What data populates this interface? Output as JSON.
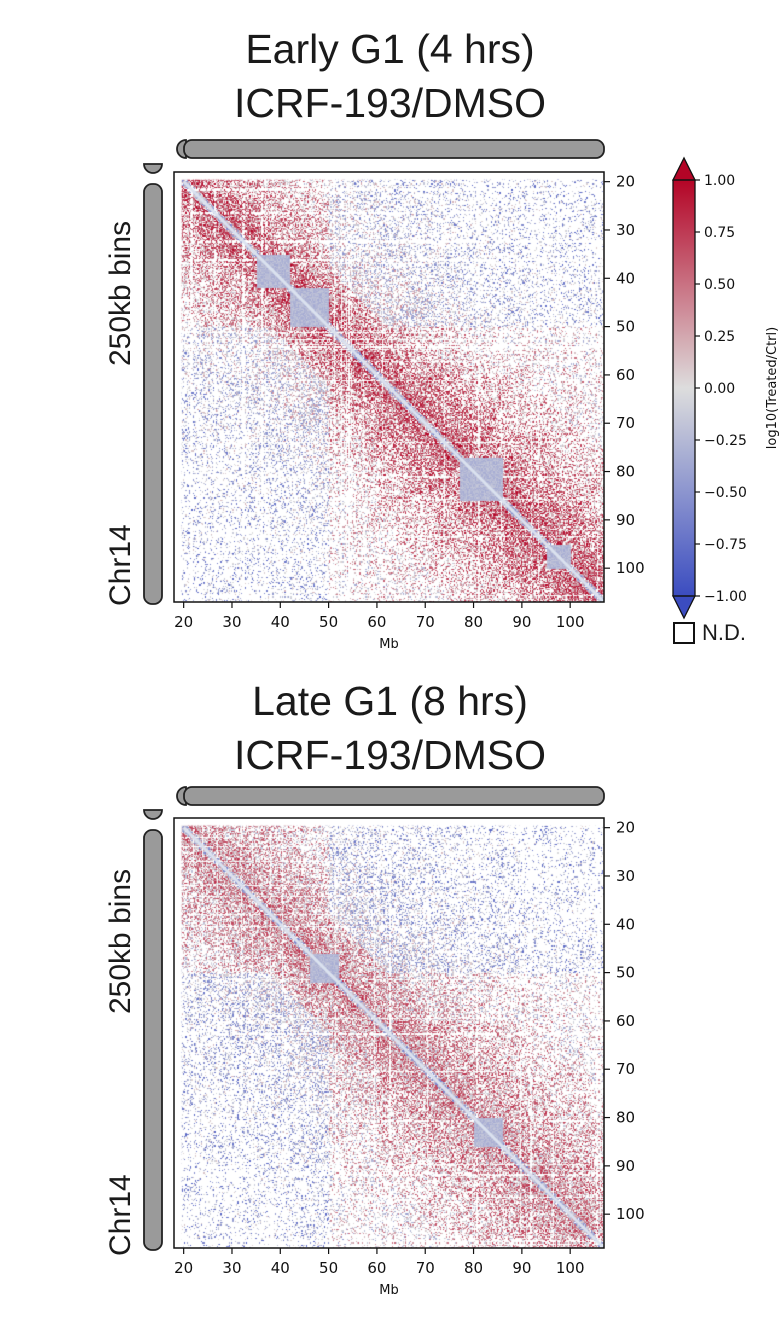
{
  "chart_data": [
    {
      "type": "heatmap",
      "title": "Early G1 (4 hrs)",
      "subtitle": "ICRF-193/DMSO",
      "xlabel": "Mb",
      "ylabel_top": "250kb bins",
      "ylabel_bottom": "Chr14",
      "xticks": [
        20,
        30,
        40,
        50,
        60,
        70,
        80,
        90,
        100
      ],
      "yticks": [
        20,
        30,
        40,
        50,
        60,
        70,
        80,
        90,
        100
      ],
      "xlim": [
        18,
        107
      ],
      "ylim": [
        18,
        107
      ],
      "diagonal_band_mb": [
        [
          35,
          42
        ],
        [
          42,
          50
        ],
        [
          77,
          86
        ],
        [
          95,
          100
        ]
      ],
      "enrichment": 0.85
    },
    {
      "type": "heatmap",
      "title": "Late G1 (8 hrs)",
      "subtitle": "ICRF-193/DMSO",
      "xlabel": "Mb",
      "ylabel_top": "250kb bins",
      "ylabel_bottom": "Chr14",
      "xticks": [
        20,
        30,
        40,
        50,
        60,
        70,
        80,
        90,
        100
      ],
      "yticks": [
        20,
        30,
        40,
        50,
        60,
        70,
        80,
        90,
        100
      ],
      "xlim": [
        18,
        107
      ],
      "ylim": [
        18,
        107
      ],
      "diagonal_band_mb": [
        [
          46,
          52
        ],
        [
          80,
          86
        ]
      ],
      "enrichment": 0.55
    }
  ],
  "colorbar": {
    "label": "log10(Treated/Ctrl)",
    "ticks": [
      "1.00",
      "0.75",
      "0.50",
      "0.25",
      "0.00",
      "−0.25",
      "−0.50",
      "−0.75",
      "−1.00"
    ],
    "range": [
      -1,
      1
    ],
    "cmap": "coolwarm",
    "low_color": "#3b4cc0",
    "mid_color": "#dddddd",
    "high_color": "#b40426"
  },
  "legend": {
    "nd_label": "N.D."
  }
}
